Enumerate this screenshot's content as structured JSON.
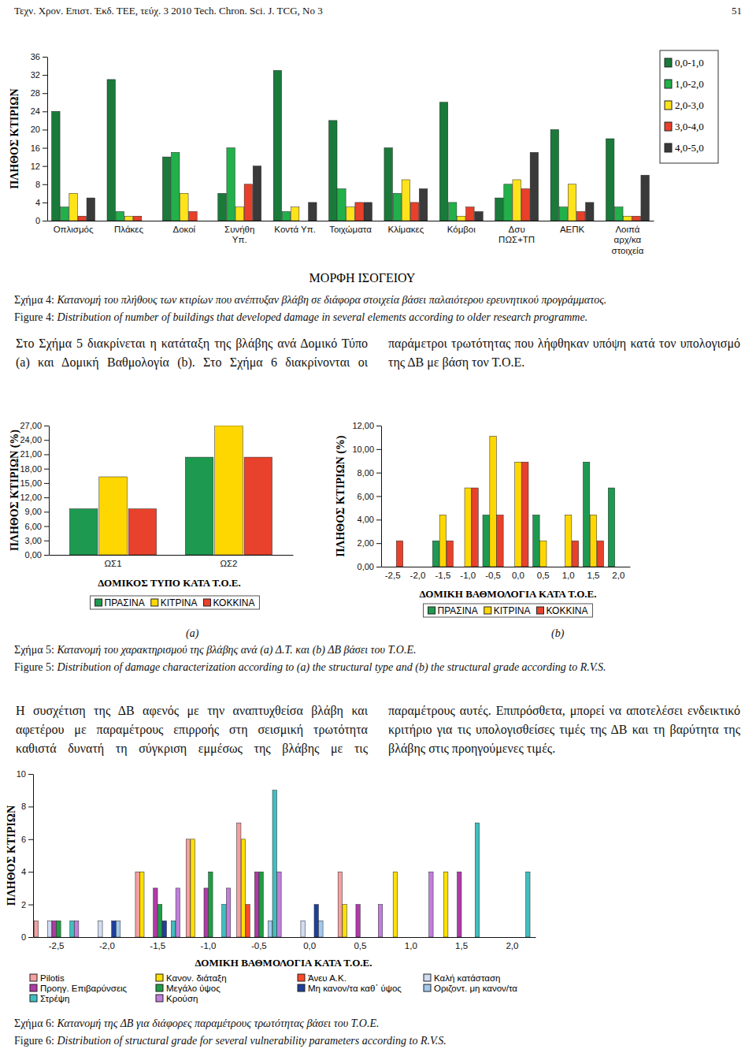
{
  "header": {
    "journal": "Τεχν. Χρον. Επιστ. Έκδ. ΤΕΕ, τεύχ. 3 2010 Tech. Chron. Sci. J. TCG, No 3",
    "page": "51"
  },
  "chart_data": [
    {
      "type": "bar",
      "y_label": "ΠΛΗΘΟΣ ΚΤΙΡΙΩΝ",
      "x_label": "ΜΟΡΦΗ ΙΣΟΓΕΙΟΥ",
      "categories": [
        "Οπλισμός",
        "Πλάκες",
        "Δοκοί",
        "Συνήθη Υπ.",
        "Κοντά Υπ.",
        "Τοιχώματα",
        "Κλίμακες",
        "Κόμβοι",
        "Δσυ ΠΩΣ+ΤΠ",
        "ΑΕΠΚ",
        "Λοιπά αρχ/κα στοιχεία"
      ],
      "series": [
        {
          "name": "0,0-1,0",
          "color": "#1a7a3a",
          "values": [
            24,
            31,
            14,
            6,
            33,
            22,
            16,
            26,
            5,
            20,
            18
          ]
        },
        {
          "name": "1,0-2,0",
          "color": "#22b04a",
          "values": [
            3,
            2,
            15,
            16,
            2,
            7,
            6,
            4,
            8,
            3,
            3
          ]
        },
        {
          "name": "2,0-3,0",
          "color": "#ffe31a",
          "values": [
            6,
            1,
            6,
            3,
            3,
            3,
            9,
            1,
            9,
            8,
            1
          ]
        },
        {
          "name": "3,0-4,0",
          "color": "#e8402a",
          "values": [
            1,
            1,
            2,
            8,
            0,
            4,
            4,
            3,
            7,
            2,
            1
          ]
        },
        {
          "name": "4,0-5,0",
          "color": "#3a3a3a",
          "values": [
            5,
            0,
            0,
            12,
            4,
            4,
            7,
            2,
            15,
            4,
            10
          ]
        }
      ],
      "ylim": [
        0,
        36
      ],
      "yticks": [
        0,
        4,
        8,
        12,
        16,
        20,
        24,
        28,
        32,
        36
      ],
      "grid": false,
      "legend": "right"
    },
    {
      "type": "bar",
      "y_label": "ΠΛΗΘΟΣ ΚΤΙΡΙΩΝ (%)",
      "x_label": "ΔΟΜΙΚΟΣ ΤΥΠΟ ΚΑΤΑ Τ.Ο.Ε.",
      "categories": [
        "ΩΣ1",
        "ΩΣ2"
      ],
      "series": [
        {
          "name": "ΠΡΑΣΙΝΑ",
          "color": "#1e9a50",
          "values": [
            9.6,
            20.4
          ]
        },
        {
          "name": "ΚΙΤΡΙΝΑ",
          "color": "#ffd700",
          "values": [
            16.3,
            27.0
          ]
        },
        {
          "name": "ΚΟΚΚΙΝΑ",
          "color": "#e8412c",
          "values": [
            9.6,
            20.4
          ]
        }
      ],
      "ylim": [
        0,
        27
      ],
      "yticks": [
        {
          "value": 0,
          "label": "0,00"
        },
        {
          "value": 3,
          "label": "3,00"
        },
        {
          "value": 6,
          "label": "6,00"
        },
        {
          "value": 9,
          "label": "9,00"
        },
        {
          "value": 12,
          "label": "12,00"
        },
        {
          "value": 15,
          "label": "15,00"
        },
        {
          "value": 18,
          "label": "18,00"
        },
        {
          "value": 21,
          "label": "21,00"
        },
        {
          "value": 24,
          "label": "24,00"
        },
        {
          "value": 27,
          "label": "27,00"
        }
      ],
      "grid": false,
      "legend": "bottom"
    },
    {
      "type": "bar",
      "y_label": "ΠΛΗΘΟΣ ΚΤΙΡΙΩΝ (%)",
      "x_label": "ΔΟΜΙΚΗ ΒΑΘΜΟΛΟΓΙΑ ΚΑΤΑ Τ.Ο.Ε.",
      "categories": [
        "-2,5",
        "-2,0",
        "-1,5",
        "-1,0",
        "-0,5",
        "0,0",
        "0,5",
        "1,0",
        "1,5",
        "2,0"
      ],
      "series": [
        {
          "name": "ΠΡΑΣΙΝΑ",
          "color": "#1e9a50",
          "values": [
            0,
            0,
            2.2,
            0,
            4.4,
            0,
            4.4,
            0,
            8.9,
            6.7
          ]
        },
        {
          "name": "ΚΙΤΡΙΝΑ",
          "color": "#ffd700",
          "values": [
            0,
            0,
            4.4,
            6.7,
            11.1,
            8.9,
            2.2,
            4.4,
            4.4,
            0
          ]
        },
        {
          "name": "ΚΟΚΚΙΝΑ",
          "color": "#e8412c",
          "values": [
            2.2,
            0,
            2.2,
            6.7,
            4.4,
            8.9,
            0,
            2.2,
            2.2,
            0
          ]
        }
      ],
      "ylim": [
        0,
        12
      ],
      "yticks": [
        {
          "value": 0,
          "label": "0,00"
        },
        {
          "value": 2,
          "label": "2,00"
        },
        {
          "value": 4,
          "label": "4,00"
        },
        {
          "value": 6,
          "label": "6,00"
        },
        {
          "value": 8,
          "label": "8,00"
        },
        {
          "value": 10,
          "label": "10,00"
        },
        {
          "value": 12,
          "label": "12,00"
        }
      ],
      "grid": false,
      "legend": "bottom"
    },
    {
      "type": "bar",
      "y_label": "ΠΛΗΘΟΣ ΚΤΙΡΙΩΝ",
      "x_label": "ΔΟΜΙΚΗ ΒΑΘΜΟΛΟΓΙΑ ΚΑΤΑ Τ.Ο.Ε.",
      "categories": [
        "-2,5",
        "-2,0",
        "-1,5",
        "-1,0",
        "-0,5",
        "0,0",
        "0,5",
        "1,0",
        "1,5",
        "2,0"
      ],
      "series": [
        {
          "name": "Pilotis",
          "color": "#f4a0a0",
          "values": [
            1,
            0,
            4,
            6,
            7,
            0,
            4,
            0,
            0,
            0
          ]
        },
        {
          "name": "Κανον. διάταξη",
          "color": "#ffe000",
          "values": [
            0,
            0,
            4,
            6,
            6,
            0,
            2,
            4,
            4,
            0
          ]
        },
        {
          "name": "Άνευ Α.Κ.",
          "color": "#ff4a2a",
          "values": [
            0,
            0,
            0,
            0,
            2,
            0,
            0,
            0,
            0,
            0
          ]
        },
        {
          "name": "Καλή κατάσταση",
          "color": "#cfdcf2",
          "values": [
            1,
            1,
            0,
            0,
            0,
            1,
            0,
            0,
            0,
            0
          ]
        },
        {
          "name": "Προηγ. Επιβαρύνσεις",
          "color": "#b03aa8",
          "values": [
            1,
            0,
            3,
            3,
            4,
            0,
            2,
            0,
            4,
            0
          ]
        },
        {
          "name": "Μεγάλο ύψος",
          "color": "#1f9e45",
          "values": [
            1,
            0,
            2,
            4,
            4,
            0,
            0,
            0,
            0,
            0
          ]
        },
        {
          "name": "Μη κανον/τα καθ΄ ύψος",
          "color": "#1f3f9a",
          "values": [
            0,
            1,
            1,
            0,
            0,
            2,
            0,
            0,
            0,
            0
          ]
        },
        {
          "name": "Οριζοντ. μη κανον/τα",
          "color": "#a3c9ef",
          "values": [
            0,
            1,
            0,
            0,
            1,
            1,
            0,
            0,
            0,
            0
          ]
        },
        {
          "name": "Στρέψη",
          "color": "#3fbfbf",
          "values": [
            1,
            0,
            1,
            2,
            9,
            0,
            0,
            0,
            7,
            4
          ]
        },
        {
          "name": "Κρούση",
          "color": "#c07fdc",
          "values": [
            1,
            0,
            3,
            3,
            4,
            0,
            2,
            4,
            0,
            0
          ]
        }
      ],
      "ylim": [
        0,
        10
      ],
      "yticks": [
        0,
        2,
        4,
        6,
        8,
        10
      ],
      "grid": false,
      "legend": "bottom"
    }
  ],
  "figures": [
    {
      "caption_gr": "Σχήμα 4: Κατανομή του πλήθους των κτιρίων που ανέπτυξαν βλάβη σε διάφορα στοιχεία βάσει παλαιότερου ερευνητικού προγράμματος.",
      "caption_en": "Figure 4: Distribution of number of buildings that developed damage in several elements according to older research programme."
    },
    {
      "caption_gr": "Σχήμα 5: Κατανομή του χαρακτηρισμού της βλάβης ανά (a) Δ.Τ. και (b) ΔΒ βάσει του Τ.Ο.Ε.",
      "caption_en": "Figure 5: Distribution of damage characterization according to (a) the structural type and (b) the structural grade according to R.V.S."
    },
    {
      "caption_gr": "Σχήμα 6: Κατανομή της ΔΒ για διάφορες παραμέτρους τρωτότητας βάσει του Τ.Ο.Ε.",
      "caption_en": "Figure 6: Distribution of structural grade for several vulnerability parameters according to R.V.S."
    }
  ],
  "panel_labels": [
    "(a)",
    "(b)"
  ],
  "paragraphs": [
    "Στο Σχήμα 5 διακρίνεται η κατάταξη της βλάβης ανά Δομικό Τύπο (a) και Δομική Βαθμολογία (b). Στο Σχήμα 6 διακρίνονται οι παράμετροι τρωτότητας που λήφθηκαν υπόψη κατά τον υπολογισμό της ΔΒ με βάση τον Τ.Ο.Ε.",
    "Η συσχέτιση της ΔΒ αφενός με την αναπτυχθείσα βλάβη και αφετέρου με παραμέτρους επιρροής στη σεισμική τρωτότητα καθιστά δυνατή τη σύγκριση εμμέσως της βλάβης με τις παραμέτρους αυτές. Επιπρόσθετα, μπορεί να αποτελέσει ενδεικτικό κριτήριο για τις υπολογισθείσες τιμές της ΔΒ και τη βαρύτητα της βλάβης στις προηγούμενες τιμές."
  ]
}
